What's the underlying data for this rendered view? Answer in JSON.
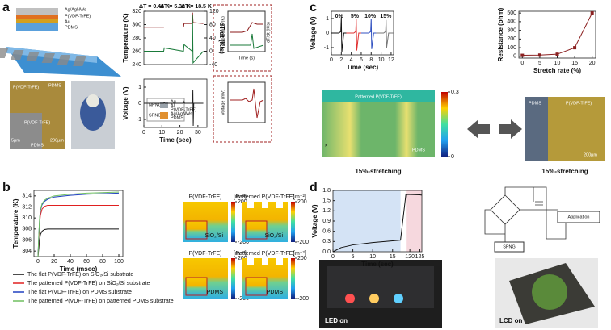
{
  "panel_labels": [
    "a",
    "b",
    "c",
    "d"
  ],
  "panel_a": {
    "layers": [
      "Ag/AgNWs",
      "P(VDF-TrFE)",
      "Au",
      "PDMS"
    ],
    "micrograph": [
      "P(VDF-TrFE)",
      "PDMS",
      "P(VDF-TrFE)",
      "PDMS",
      "5µm",
      "200µm"
    ],
    "inset_top": {
      "ylabel": "Temperature (K)",
      "y2label": "dT/dt (K/s)",
      "xlabel": "Time (s)"
    },
    "inset_bottom": {
      "ylabel": "Voltage (mV)"
    },
    "device_legend": [
      "NPNG",
      "SPNG",
      "Ag",
      "Al",
      "P(VDF-TrFE)",
      "Ag/AgNWs",
      "PDMS"
    ]
  },
  "panel_b": {
    "maps": [
      {
        "title": "P(VDF-TrFE)",
        "substrate": "SiO₂/Si"
      },
      {
        "title": "Patterned P(VDF-TrFE)",
        "substrate": "SiO₂/Si"
      },
      {
        "title": "P(VDF-TrFE)",
        "substrate": "PDMS"
      },
      {
        "title": "Patterned P(VDF-TrFE)",
        "substrate": "PDMS"
      }
    ],
    "colorbar_unit": "[m⁻²]",
    "colorbar_ticks": [
      200,
      -200
    ]
  },
  "panel_c": {
    "sim_title": "Patterned P(VDF-TrFE)",
    "sim_substrate": "PDMS",
    "sim_axis": "x",
    "colorbar_ticks": [
      0.3,
      0
    ],
    "sim_caption": "15%-stretching",
    "photo_labels": [
      "PDMS",
      "P(VDF-TrFE)",
      "200µm"
    ],
    "photo_caption": "15%-stretching"
  },
  "panel_d": {
    "circuit": [
      "Application",
      "SPNG"
    ],
    "photos": [
      "LED on",
      "LCD on"
    ]
  },
  "chart_data": [
    {
      "type": "line",
      "ylabel": "Temperature (K)",
      "y2label": "dT/dt (K/s)",
      "annotations": [
        "ΔT = 0.44 K",
        "ΔT = 5.30 K",
        "ΔT = 18.5 K"
      ],
      "x": [
        0,
        11,
        11.3,
        22,
        22.3,
        26.8,
        27,
        27.3,
        33
      ],
      "xlim": [
        0,
        35
      ],
      "ylim": [
        240,
        320
      ],
      "yticks": [
        240,
        260,
        280,
        300,
        320
      ],
      "y2lim": [
        -40,
        120
      ],
      "y2ticks": [
        -40,
        0,
        40,
        80,
        120
      ],
      "series": [
        {
          "color": "#8b1a1a",
          "values": [
            296,
            296,
            296.4,
            296.4,
            301.7,
            301.7,
            318,
            303,
            301.7
          ]
        },
        {
          "color": "#1a7a3a",
          "axis": "y2",
          "values": [
            0,
            0,
            10,
            0,
            20,
            0,
            110,
            -35,
            0
          ]
        }
      ]
    },
    {
      "type": "line",
      "xlabel": "Time (sec)",
      "ylabel": "Voltage (V)",
      "x": [
        0,
        11,
        11.3,
        11.6,
        22,
        22.3,
        22.6,
        27,
        27.2,
        27.4,
        27.7,
        33
      ],
      "xlim": [
        0,
        35
      ],
      "xticks": [
        0,
        10,
        20,
        30
      ],
      "ylim": [
        -1.5,
        1.5
      ],
      "yticks": [
        -1,
        0,
        1
      ],
      "series": [
        {
          "color": "#222222",
          "values": [
            0,
            0,
            0.05,
            0,
            0,
            0.1,
            0,
            0,
            0.8,
            -1.4,
            0,
            0
          ]
        }
      ]
    },
    {
      "type": "line",
      "xlabel": "Time (sec)",
      "ylabel": "Voltage (V)",
      "annotations": [
        "0%",
        "5%",
        "10%",
        "15%"
      ],
      "x": [
        0,
        1.5,
        1.9,
        2,
        2.1,
        2.5,
        3,
        4.5,
        4.9,
        5,
        5.1,
        5.5,
        6,
        7.5,
        7.9,
        8,
        8.1,
        8.5,
        9,
        10.5,
        10.9,
        11,
        11.1,
        11.5,
        12.5
      ],
      "xlim": [
        0,
        12.5
      ],
      "xticks": [
        0,
        2,
        4,
        6,
        8,
        10,
        12
      ],
      "ylim": [
        -1.5,
        1.5
      ],
      "yticks": [
        -1,
        0,
        1
      ],
      "series": [
        {
          "color": "#111111",
          "values": [
            0,
            0,
            0.1,
            1.1,
            -1.3,
            0,
            0,
            null,
            null,
            null,
            null,
            null,
            null,
            null,
            null,
            null,
            null,
            null,
            null,
            null,
            null,
            null,
            null,
            null,
            null
          ]
        },
        {
          "color": "#e03030",
          "values": [
            null,
            null,
            null,
            null,
            null,
            null,
            0,
            0,
            0.1,
            1.0,
            -1.2,
            0,
            0,
            null,
            null,
            null,
            null,
            null,
            null,
            null,
            null,
            null,
            null,
            null,
            null
          ]
        },
        {
          "color": "#3050c0",
          "values": [
            null,
            null,
            null,
            null,
            null,
            null,
            null,
            null,
            null,
            null,
            null,
            null,
            0,
            0,
            0.1,
            1.0,
            -1.1,
            0,
            0,
            null,
            null,
            null,
            null,
            null,
            null
          ]
        },
        {
          "color": "#777777",
          "values": [
            null,
            null,
            null,
            null,
            null,
            null,
            null,
            null,
            null,
            null,
            null,
            null,
            null,
            null,
            null,
            null,
            null,
            null,
            0,
            0,
            0.1,
            0.9,
            -1.0,
            0,
            0
          ]
        }
      ]
    },
    {
      "type": "line",
      "markers": true,
      "xlabel": "Stretch rate (%)",
      "ylabel": "Resistance (ohm)",
      "x": [
        0,
        5,
        10,
        15,
        20
      ],
      "xlim": [
        -1,
        21
      ],
      "xticks": [
        0,
        5,
        10,
        15,
        20
      ],
      "ylim": [
        -20,
        520
      ],
      "yticks": [
        0,
        100,
        200,
        300,
        400,
        500
      ],
      "series": [
        {
          "color": "#8b2020",
          "values": [
            12,
            15,
            25,
            100,
            500
          ]
        }
      ]
    },
    {
      "type": "line",
      "xlabel": "Time (msec)",
      "ylabel": "Temperature (K)",
      "x": [
        0,
        1,
        2,
        3,
        5,
        8,
        12,
        20,
        40,
        60,
        80,
        100
      ],
      "xlim": [
        -5,
        105
      ],
      "xticks": [
        0,
        20,
        40,
        60,
        80,
        100
      ],
      "ylim": [
        303,
        315
      ],
      "yticks": [
        304,
        306,
        308,
        310,
        312,
        314
      ],
      "series": [
        {
          "name": "The flat P(VDF-TrFE) on SiO₂/Si substrate",
          "color": "#111111",
          "values": [
            303,
            304.5,
            306,
            307,
            307.6,
            307.9,
            308,
            308,
            308,
            308,
            308,
            308
          ]
        },
        {
          "name": "The patterned P(VDF-TrFE) on SiO₂/Si substrate",
          "color": "#e02020",
          "values": [
            303,
            306,
            309,
            310.5,
            311.6,
            312.1,
            312.3,
            312.3,
            312.3,
            312.3,
            312.3,
            312.3
          ]
        },
        {
          "name": "The flat P(VDF-TrFE) on PDMS substrate",
          "color": "#2040c0",
          "values": [
            303,
            306.8,
            309.8,
            311.3,
            312.4,
            313.0,
            313.4,
            313.8,
            314.1,
            314.3,
            314.4,
            314.5
          ]
        },
        {
          "name": "The patterned P(VDF-TrFE) on patterned PDMS substrate",
          "color": "#6fbf5f",
          "values": [
            303,
            307,
            310,
            311.5,
            312.6,
            313.2,
            313.6,
            314,
            314.3,
            314.5,
            314.6,
            314.7
          ]
        }
      ]
    },
    {
      "type": "line",
      "xlabel": "Time (sec)",
      "ylabel": "Voltage (V)",
      "x": [
        0,
        2,
        5,
        10,
        15,
        17,
        118,
        120,
        125,
        126
      ],
      "xlim": [
        0,
        126
      ],
      "xbreak": [
        17,
        118
      ],
      "xticks": [
        0,
        5,
        10,
        15,
        120,
        125
      ],
      "ylim": [
        0,
        1.8
      ],
      "yticks": [
        {
          "value": 0,
          "label": "0.0"
        },
        0.3,
        0.6,
        0.9,
        1.2,
        1.5,
        1.8
      ],
      "shade_colors": [
        "#d4e3f5",
        "#f6d8de"
      ],
      "series": [
        {
          "color": "#111111",
          "values": [
            0,
            0.12,
            0.2,
            0.27,
            0.32,
            0.34,
            1.68,
            1.68,
            1.67,
            1.66
          ]
        }
      ]
    }
  ]
}
